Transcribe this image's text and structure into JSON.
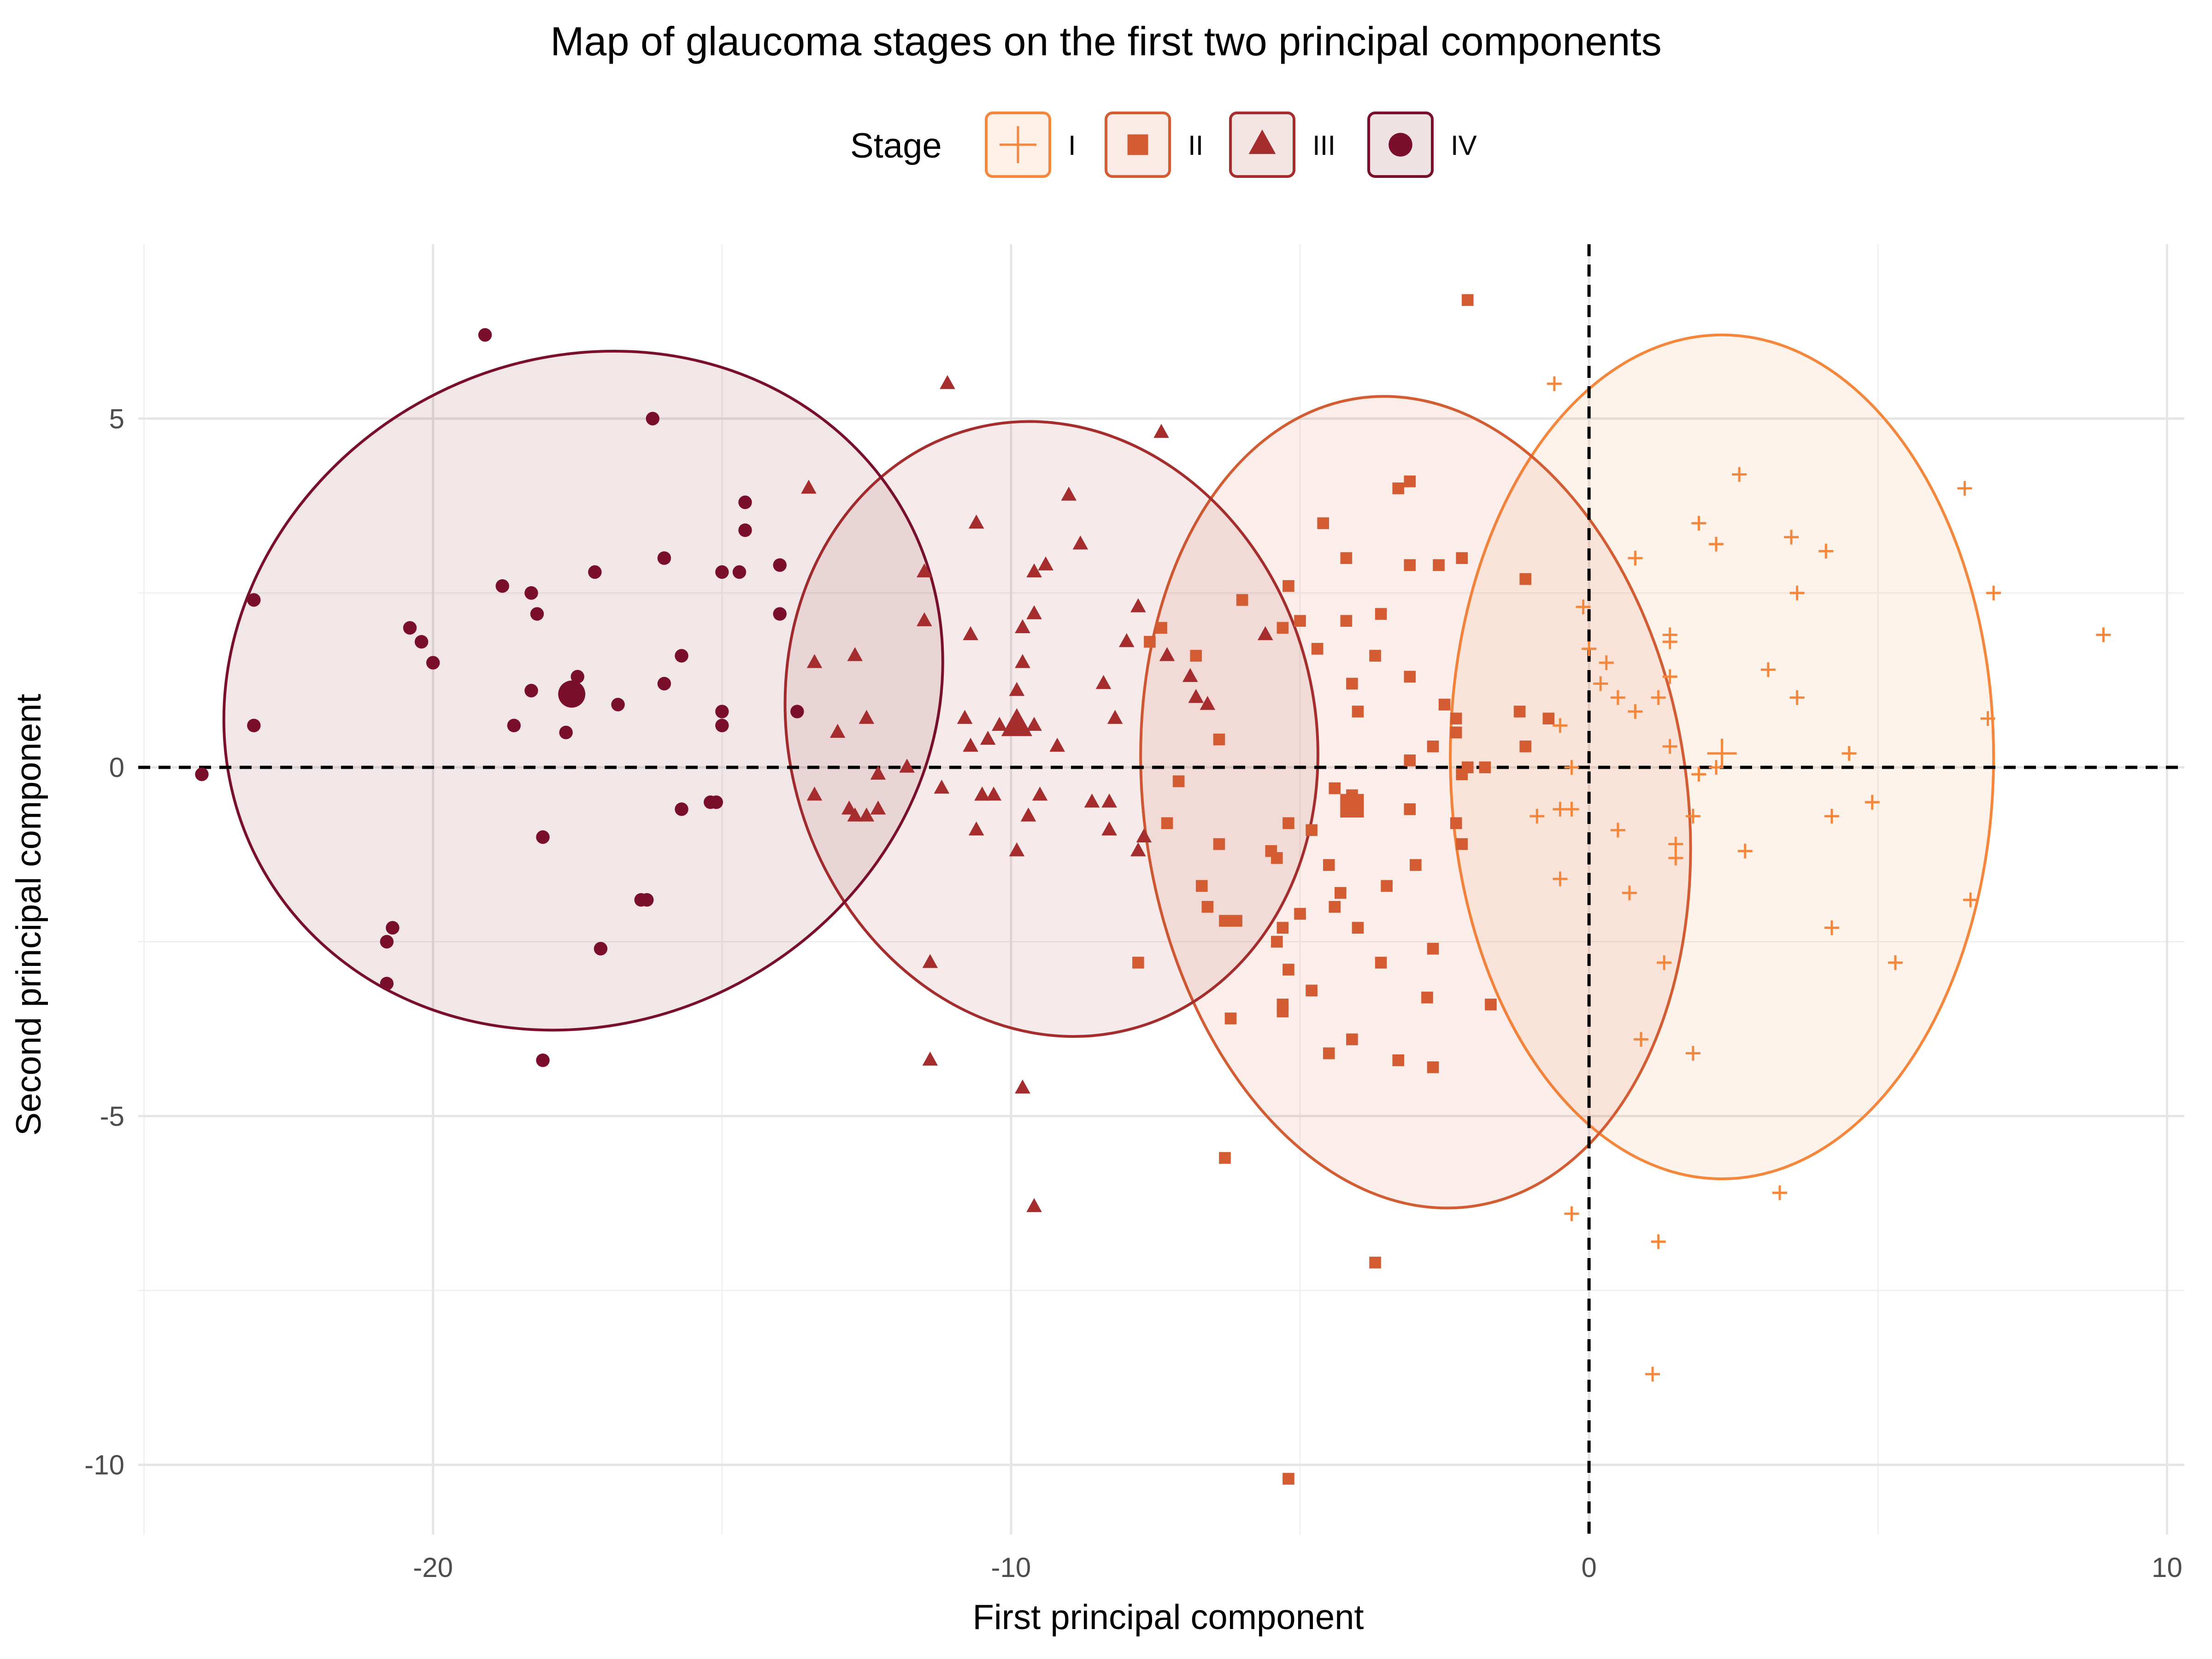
{
  "chart_data": {
    "type": "scatter",
    "title": "Map of glaucoma stages on the first two principal components",
    "xlabel": "First principal component",
    "ylabel": "Second principal component",
    "xlim": [
      -25.1,
      10.3
    ],
    "ylim": [
      -11.0,
      7.5
    ],
    "x_ticks": [
      -20,
      -10,
      0,
      10
    ],
    "y_ticks": [
      -10,
      -5,
      0,
      5
    ],
    "x_tick_labels": [
      "-20",
      "-10",
      "0",
      "10"
    ],
    "y_tick_labels": [
      "-10",
      "-5",
      "0",
      "5"
    ],
    "reference_lines": {
      "x": 0,
      "y": 0,
      "style": "dashed"
    },
    "grid": true,
    "legend": {
      "title": "Stage",
      "position": "top"
    },
    "series": [
      {
        "name": "I",
        "color": "#f5873c",
        "shape": "plus",
        "centroid": [
          2.3,
          0.2
        ],
        "ellipse": {
          "cx": 2.3,
          "cy": 0.15,
          "rx": 4.7,
          "ry": 6.05,
          "angle": 0
        },
        "points": [
          [
            -0.6,
            5.5
          ],
          [
            2.6,
            4.2
          ],
          [
            6.5,
            4.0
          ],
          [
            1.9,
            3.5
          ],
          [
            3.5,
            3.3
          ],
          [
            2.2,
            3.2
          ],
          [
            4.1,
            3.1
          ],
          [
            0.8,
            3.0
          ],
          [
            3.6,
            2.5
          ],
          [
            7.0,
            2.5
          ],
          [
            -0.1,
            2.3
          ],
          [
            8.9,
            1.9
          ],
          [
            1.4,
            1.9
          ],
          [
            1.4,
            1.8
          ],
          [
            0.0,
            1.7
          ],
          [
            0.3,
            1.5
          ],
          [
            3.1,
            1.4
          ],
          [
            1.4,
            1.3
          ],
          [
            0.2,
            1.2
          ],
          [
            0.5,
            1.0
          ],
          [
            1.2,
            1.0
          ],
          [
            3.6,
            1.0
          ],
          [
            0.8,
            0.8
          ],
          [
            6.9,
            0.7
          ],
          [
            -0.5,
            0.6
          ],
          [
            1.4,
            0.3
          ],
          [
            4.5,
            0.2
          ],
          [
            -0.3,
            0.0
          ],
          [
            2.2,
            0.0
          ],
          [
            1.9,
            -0.1
          ],
          [
            4.9,
            -0.5
          ],
          [
            -0.5,
            -0.6
          ],
          [
            -0.3,
            -0.6
          ],
          [
            -0.9,
            -0.7
          ],
          [
            4.2,
            -0.7
          ],
          [
            1.8,
            -0.7
          ],
          [
            0.5,
            -0.9
          ],
          [
            1.5,
            -1.1
          ],
          [
            2.7,
            -1.2
          ],
          [
            1.5,
            -1.3
          ],
          [
            -0.5,
            -1.6
          ],
          [
            0.7,
            -1.8
          ],
          [
            6.6,
            -1.9
          ],
          [
            4.2,
            -2.3
          ],
          [
            5.3,
            -2.8
          ],
          [
            1.3,
            -2.8
          ],
          [
            0.9,
            -3.9
          ],
          [
            1.8,
            -4.1
          ],
          [
            3.3,
            -6.1
          ],
          [
            -0.3,
            -6.4
          ],
          [
            1.2,
            -6.8
          ],
          [
            1.1,
            -8.7
          ]
        ]
      },
      {
        "name": "II",
        "color": "#d35c33",
        "shape": "square",
        "centroid": [
          -4.1,
          -0.55
        ],
        "ellipse": {
          "cx": -3.0,
          "cy": -0.5,
          "rx": 4.7,
          "ry": 5.85,
          "angle": -8
        },
        "points": [
          [
            -2.1,
            6.7
          ],
          [
            -3.3,
            4.0
          ],
          [
            -3.1,
            4.1
          ],
          [
            -4.6,
            3.5
          ],
          [
            -4.2,
            3.0
          ],
          [
            -3.1,
            2.9
          ],
          [
            -2.2,
            3.0
          ],
          [
            -2.6,
            2.9
          ],
          [
            -1.1,
            2.7
          ],
          [
            -5.2,
            2.6
          ],
          [
            -6.0,
            2.4
          ],
          [
            -3.6,
            2.2
          ],
          [
            -7.4,
            2.0
          ],
          [
            -5.0,
            2.1
          ],
          [
            -4.2,
            2.1
          ],
          [
            -5.3,
            2.0
          ],
          [
            -4.7,
            1.7
          ],
          [
            -7.6,
            1.8
          ],
          [
            -6.8,
            1.6
          ],
          [
            -3.7,
            1.6
          ],
          [
            -4.1,
            1.2
          ],
          [
            -3.1,
            1.3
          ],
          [
            -2.5,
            0.9
          ],
          [
            -2.3,
            0.7
          ],
          [
            -2.3,
            0.5
          ],
          [
            -1.2,
            0.8
          ],
          [
            -0.7,
            0.7
          ],
          [
            -1.1,
            0.3
          ],
          [
            -2.7,
            0.3
          ],
          [
            -6.4,
            0.4
          ],
          [
            -4.0,
            0.8
          ],
          [
            -3.1,
            0.1
          ],
          [
            -2.1,
            0.0
          ],
          [
            -1.8,
            0.0
          ],
          [
            -2.2,
            -0.1
          ],
          [
            -7.1,
            -0.2
          ],
          [
            -4.1,
            -0.4
          ],
          [
            -4.4,
            -0.3
          ],
          [
            -4.1,
            -0.6
          ],
          [
            -3.1,
            -0.6
          ],
          [
            -5.2,
            -0.8
          ],
          [
            -7.3,
            -0.8
          ],
          [
            -5.5,
            -1.2
          ],
          [
            -4.8,
            -0.9
          ],
          [
            -5.4,
            -1.3
          ],
          [
            -6.4,
            -1.1
          ],
          [
            -4.5,
            -1.4
          ],
          [
            -3.0,
            -1.4
          ],
          [
            -2.3,
            -0.8
          ],
          [
            -2.2,
            -1.1
          ],
          [
            -3.5,
            -1.7
          ],
          [
            -4.3,
            -1.8
          ],
          [
            -4.4,
            -2.0
          ],
          [
            -6.7,
            -1.7
          ],
          [
            -6.6,
            -2.0
          ],
          [
            -5.0,
            -2.1
          ],
          [
            -6.3,
            -2.2
          ],
          [
            -6.1,
            -2.2
          ],
          [
            -5.3,
            -2.3
          ],
          [
            -5.4,
            -2.5
          ],
          [
            -4.0,
            -2.3
          ],
          [
            -2.7,
            -2.6
          ],
          [
            -3.6,
            -2.8
          ],
          [
            -5.2,
            -2.9
          ],
          [
            -4.8,
            -3.2
          ],
          [
            -2.8,
            -3.3
          ],
          [
            -7.8,
            -2.8
          ],
          [
            -6.2,
            -3.6
          ],
          [
            -5.3,
            -3.4
          ],
          [
            -5.3,
            -3.5
          ],
          [
            -4.1,
            -3.9
          ],
          [
            -4.5,
            -4.1
          ],
          [
            -3.3,
            -4.2
          ],
          [
            -2.7,
            -4.3
          ],
          [
            -1.7,
            -3.4
          ],
          [
            -6.3,
            -5.6
          ],
          [
            -3.7,
            -7.1
          ],
          [
            -5.2,
            -10.2
          ]
        ]
      },
      {
        "name": "III",
        "color": "#a52d2d",
        "shape": "triangle",
        "centroid": [
          -9.9,
          0.6
        ],
        "ellipse": {
          "cx": -9.3,
          "cy": 0.55,
          "rx": 4.55,
          "ry": 4.45,
          "angle": -15
        },
        "points": [
          [
            -11.1,
            5.5
          ],
          [
            -7.4,
            4.8
          ],
          [
            -13.5,
            4.0
          ],
          [
            -9.0,
            3.9
          ],
          [
            -10.6,
            3.5
          ],
          [
            -8.8,
            3.2
          ],
          [
            -11.5,
            2.8
          ],
          [
            -9.4,
            2.9
          ],
          [
            -9.6,
            2.8
          ],
          [
            -7.8,
            2.3
          ],
          [
            -9.8,
            2.0
          ],
          [
            -9.6,
            2.2
          ],
          [
            -11.5,
            2.1
          ],
          [
            -10.7,
            1.9
          ],
          [
            -5.6,
            1.9
          ],
          [
            -8.0,
            1.8
          ],
          [
            -7.3,
            1.6
          ],
          [
            -13.4,
            1.5
          ],
          [
            -12.7,
            1.6
          ],
          [
            -9.8,
            1.5
          ],
          [
            -6.9,
            1.3
          ],
          [
            -8.4,
            1.2
          ],
          [
            -9.9,
            1.1
          ],
          [
            -6.8,
            1.0
          ],
          [
            -6.6,
            0.9
          ],
          [
            -10.8,
            0.7
          ],
          [
            -10.2,
            0.6
          ],
          [
            -12.5,
            0.7
          ],
          [
            -13.0,
            0.5
          ],
          [
            -9.6,
            0.6
          ],
          [
            -8.2,
            0.7
          ],
          [
            -10.4,
            0.4
          ],
          [
            -10.7,
            0.3
          ],
          [
            -9.2,
            0.3
          ],
          [
            -12.3,
            -0.1
          ],
          [
            -11.8,
            0.0
          ],
          [
            -10.5,
            -0.4
          ],
          [
            -11.2,
            -0.3
          ],
          [
            -10.5,
            -0.4
          ],
          [
            -10.3,
            -0.4
          ],
          [
            -9.5,
            -0.4
          ],
          [
            -8.6,
            -0.5
          ],
          [
            -8.3,
            -0.5
          ],
          [
            -13.4,
            -0.4
          ],
          [
            -12.8,
            -0.6
          ],
          [
            -12.7,
            -0.7
          ],
          [
            -12.5,
            -0.7
          ],
          [
            -12.3,
            -0.6
          ],
          [
            -9.7,
            -0.7
          ],
          [
            -10.6,
            -0.9
          ],
          [
            -8.3,
            -0.9
          ],
          [
            -7.7,
            -1.0
          ],
          [
            -7.8,
            -1.2
          ],
          [
            -9.9,
            -1.2
          ],
          [
            -11.4,
            -2.8
          ],
          [
            -11.4,
            -4.2
          ],
          [
            -9.8,
            -4.6
          ],
          [
            -9.6,
            -6.3
          ]
        ]
      },
      {
        "name": "IV",
        "color": "#7a0f2c",
        "shape": "circle",
        "centroid": [
          -17.6,
          1.05
        ],
        "ellipse": {
          "cx": -17.4,
          "cy": 1.1,
          "rx": 6.35,
          "ry": 4.75,
          "angle": -28
        },
        "points": [
          [
            -19.1,
            6.2
          ],
          [
            -16.2,
            5.0
          ],
          [
            -14.6,
            3.8
          ],
          [
            -14.6,
            3.4
          ],
          [
            -16.0,
            3.0
          ],
          [
            -17.2,
            2.8
          ],
          [
            -15.0,
            2.8
          ],
          [
            -14.7,
            2.8
          ],
          [
            -14.0,
            2.9
          ],
          [
            -23.1,
            2.4
          ],
          [
            -18.8,
            2.6
          ],
          [
            -18.3,
            2.5
          ],
          [
            -18.2,
            2.2
          ],
          [
            -14.0,
            2.2
          ],
          [
            -20.4,
            2.0
          ],
          [
            -20.2,
            1.8
          ],
          [
            -20.0,
            1.5
          ],
          [
            -15.7,
            1.6
          ],
          [
            -17.5,
            1.3
          ],
          [
            -16.0,
            1.2
          ],
          [
            -18.3,
            1.1
          ],
          [
            -16.8,
            0.9
          ],
          [
            -15.0,
            0.8
          ],
          [
            -13.7,
            0.8
          ],
          [
            -23.1,
            0.6
          ],
          [
            -18.6,
            0.6
          ],
          [
            -17.7,
            0.5
          ],
          [
            -15.0,
            0.6
          ],
          [
            -24.0,
            -0.1
          ],
          [
            -15.7,
            -0.6
          ],
          [
            -15.2,
            -0.5
          ],
          [
            -15.1,
            -0.5
          ],
          [
            -18.1,
            -1.0
          ],
          [
            -16.4,
            -1.9
          ],
          [
            -16.3,
            -1.9
          ],
          [
            -20.7,
            -2.3
          ],
          [
            -20.8,
            -2.5
          ],
          [
            -17.1,
            -2.6
          ],
          [
            -20.8,
            -3.1
          ],
          [
            -18.1,
            -4.2
          ]
        ]
      }
    ]
  }
}
